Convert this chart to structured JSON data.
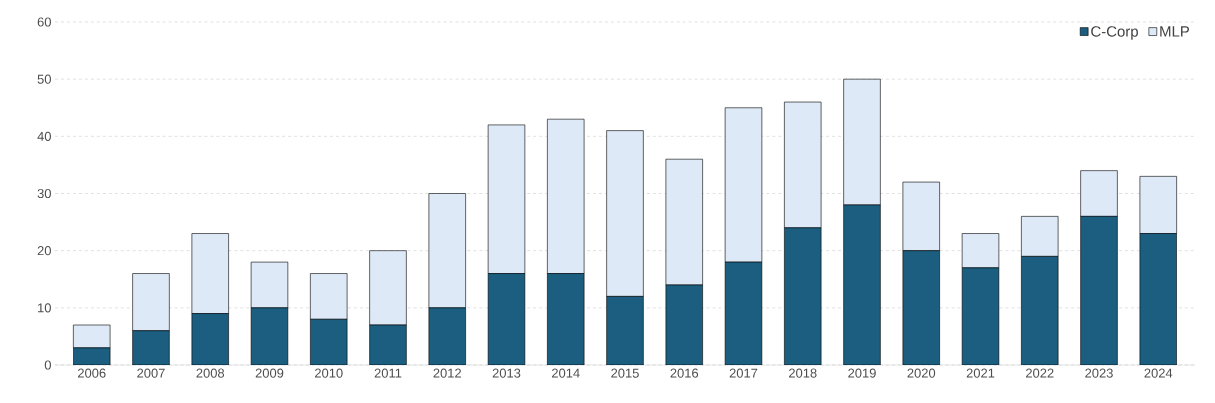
{
  "chart_data": {
    "type": "bar",
    "stacked": true,
    "categories": [
      "2006",
      "2007",
      "2008",
      "2009",
      "2010",
      "2011",
      "2012",
      "2013",
      "2014",
      "2015",
      "2016",
      "2017",
      "2018",
      "2019",
      "2020",
      "2021",
      "2022",
      "2023",
      "2024"
    ],
    "series": [
      {
        "name": "C-Corp",
        "color": "#1b5e7f",
        "values": [
          3,
          6,
          9,
          10,
          8,
          7,
          10,
          16,
          16,
          12,
          14,
          18,
          24,
          28,
          20,
          17,
          19,
          26,
          23
        ]
      },
      {
        "name": "MLP",
        "color": "#dde9f6",
        "values": [
          4,
          10,
          14,
          8,
          8,
          13,
          20,
          26,
          27,
          29,
          22,
          27,
          22,
          22,
          12,
          6,
          7,
          8,
          10
        ]
      }
    ],
    "ylim": [
      0,
      60
    ],
    "yticks": [
      0,
      10,
      20,
      30,
      40,
      50,
      60
    ],
    "grid": "y",
    "legend": "top right"
  }
}
